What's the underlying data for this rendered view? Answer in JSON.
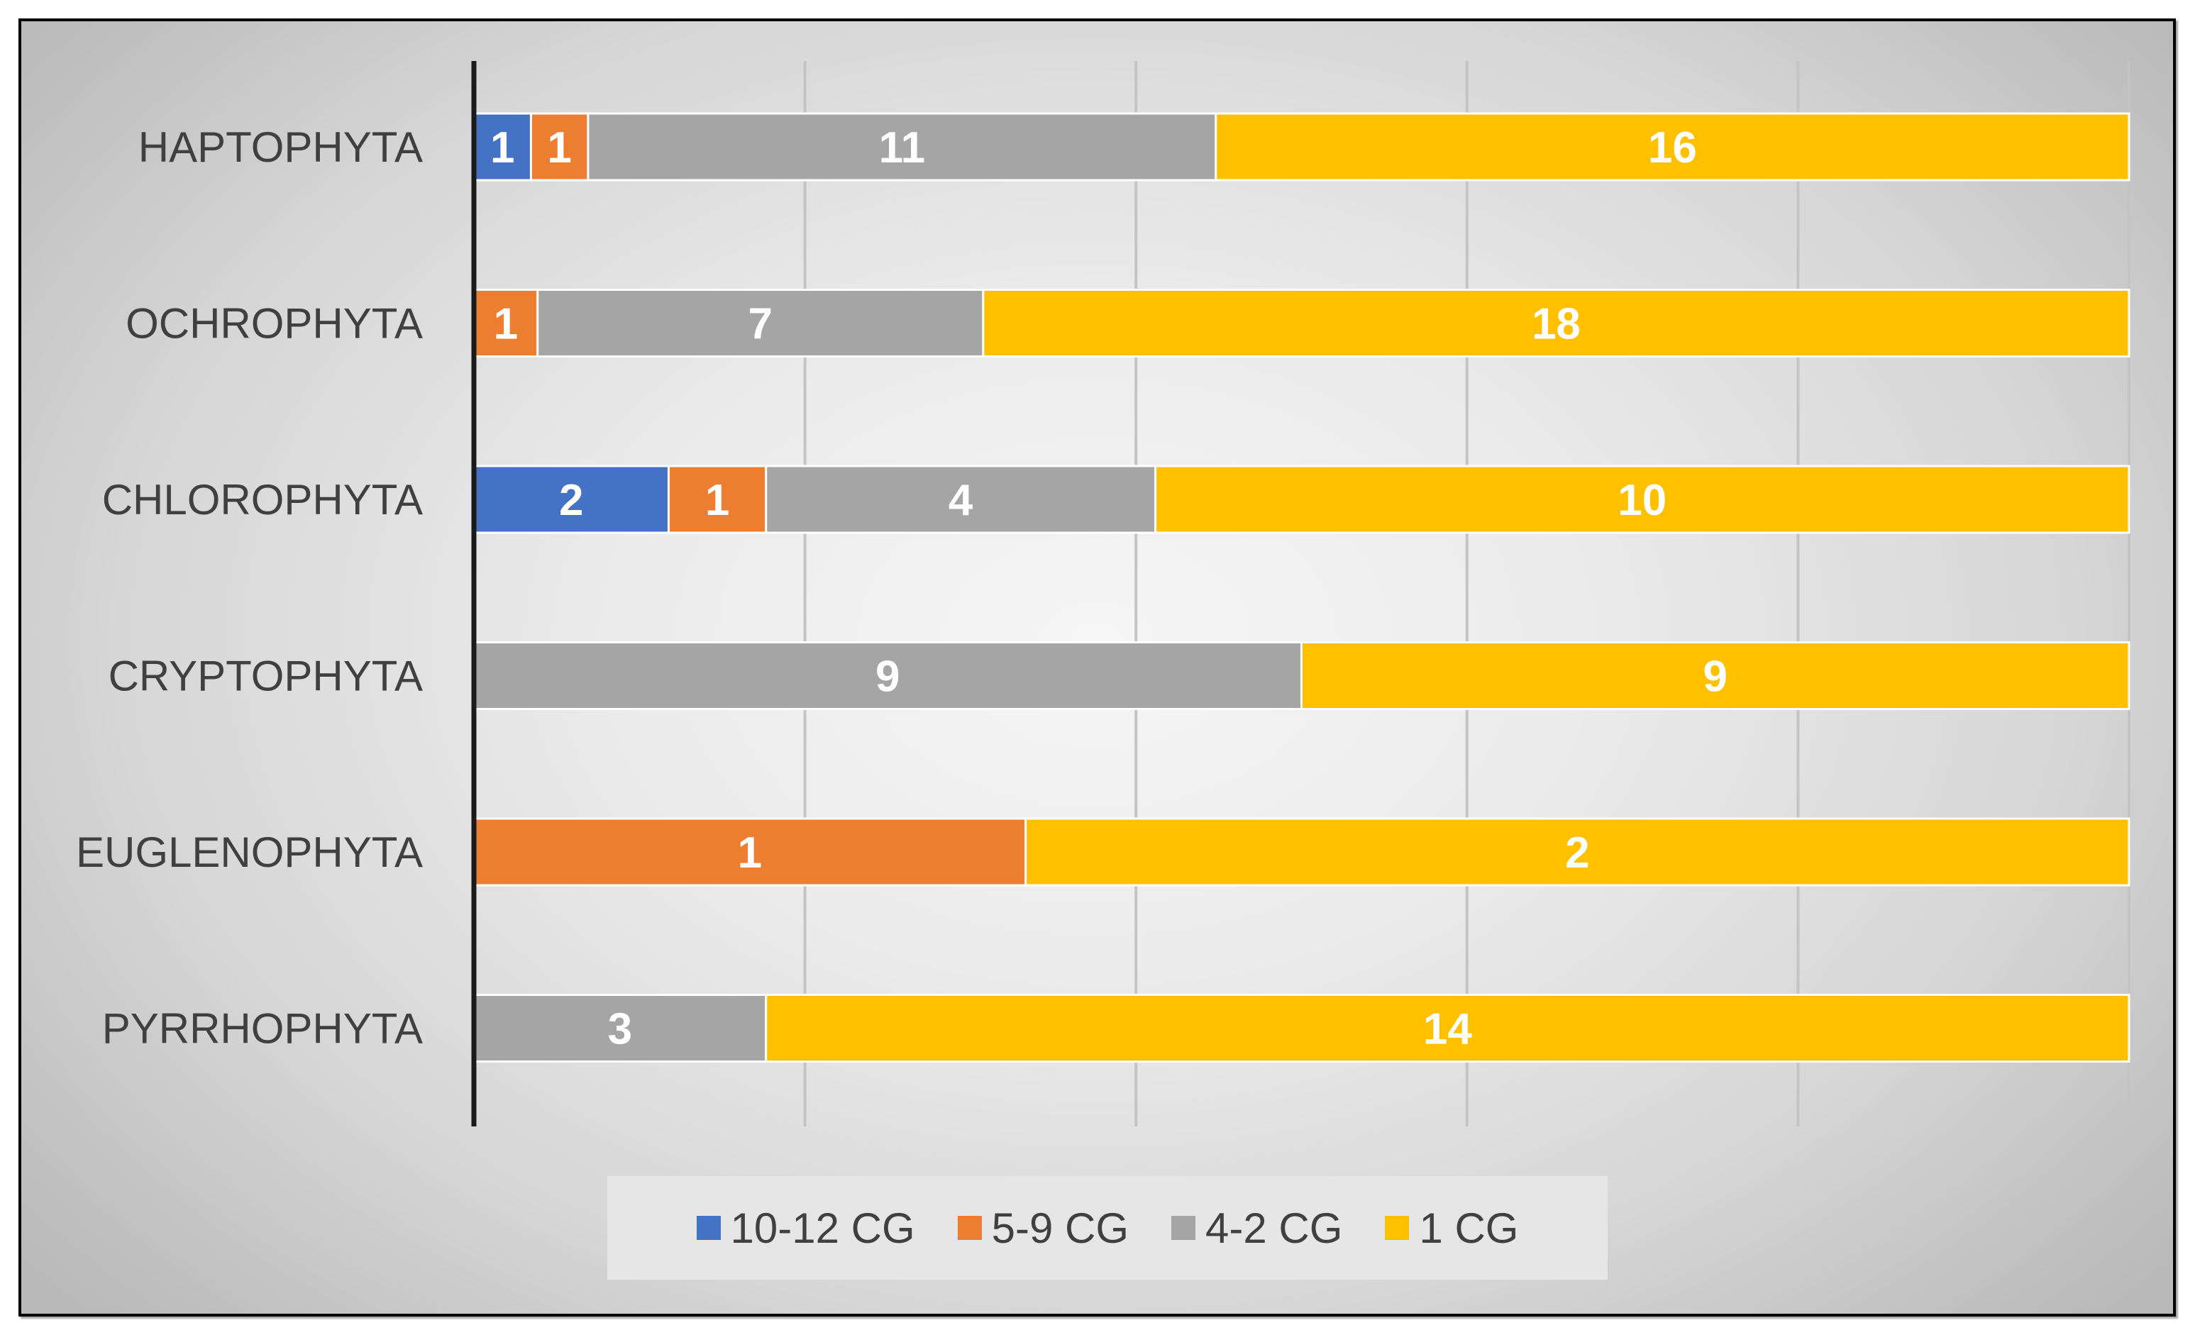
{
  "chart_data": {
    "type": "bar",
    "orientation": "horizontal",
    "stacking": "percent",
    "categories": [
      "HAPTOPHYTA",
      "OCHROPHYTA",
      "CHLOROPHYTA",
      "CRYPTOPHYTA",
      "EUGLENOPHYTA",
      "PYRRHOPHYTA"
    ],
    "series": [
      {
        "name": "10-12 CG",
        "color": "#4472C4",
        "values": [
          1,
          0,
          2,
          0,
          0,
          0
        ]
      },
      {
        "name": "5-9 CG",
        "color": "#ED7D31",
        "values": [
          1,
          1,
          1,
          0,
          1,
          0
        ]
      },
      {
        "name": "4-2 CG",
        "color": "#A5A5A5",
        "values": [
          11,
          7,
          4,
          9,
          0,
          3
        ]
      },
      {
        "name": "1 CG",
        "color": "#FFC000",
        "values": [
          16,
          18,
          10,
          9,
          2,
          14
        ]
      }
    ],
    "data_labels": true,
    "grid": "vertical",
    "legend": "bottom",
    "title": "",
    "xlabel": "",
    "ylabel": ""
  }
}
